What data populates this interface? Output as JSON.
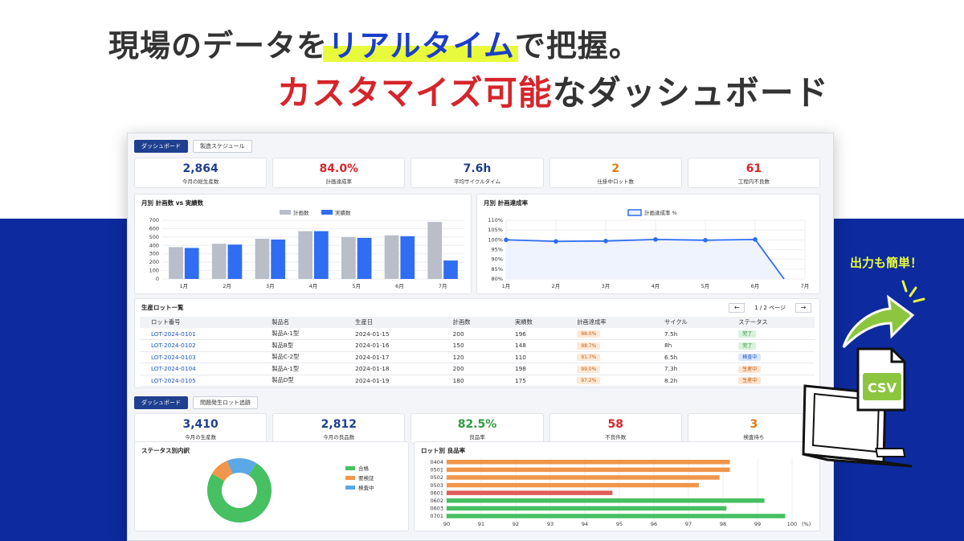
{
  "headline": {
    "line1_a": "現場のデータを",
    "line1_b": "リアルタイム",
    "line1_c": "で把握。",
    "line2_a": "カスタマイズ可能",
    "line2_b": "なダッシュボード"
  },
  "export_label": "出力も簡単！",
  "csv_label": "CSV",
  "top_tabs": [
    "ダッシュボード",
    "製造スケジュール"
  ],
  "top_kpis": [
    {
      "value": "2,864",
      "label": "今月の総生産数",
      "color": "#1f3f8f"
    },
    {
      "value": "84.0%",
      "label": "計画達成率",
      "color": "#d6252b"
    },
    {
      "value": "7.6h",
      "label": "平均サイクルタイム",
      "color": "#1f3f8f"
    },
    {
      "value": "2",
      "label": "仕掛中ロット数",
      "color": "#e07a10"
    },
    {
      "value": "61",
      "label": "工程内不良数",
      "color": "#d6252b"
    }
  ],
  "chart_data": [
    {
      "type": "bar",
      "title": "月別 計画数 vs 実績数",
      "categories": [
        "1月",
        "2月",
        "3月",
        "4月",
        "5月",
        "6月",
        "7月"
      ],
      "series": [
        {
          "name": "計画数",
          "values": [
            380,
            420,
            480,
            570,
            500,
            520,
            680
          ],
          "color": "#b9bec8"
        },
        {
          "name": "実績数",
          "values": [
            370,
            410,
            470,
            570,
            490,
            510,
            220
          ],
          "color": "#2f6df2"
        }
      ],
      "ylim": [
        0,
        700
      ],
      "yticks": [
        0,
        100,
        200,
        300,
        400,
        500,
        600,
        700
      ],
      "legend": "top-center"
    },
    {
      "type": "line",
      "title": "月別 計画達成率",
      "categories": [
        "1月",
        "2月",
        "3月",
        "4月",
        "5月",
        "6月",
        "7月"
      ],
      "series": [
        {
          "name": "計画達成率 %",
          "values": [
            100,
            99.2,
            99.4,
            100.2,
            99.8,
            100.2,
            78
          ],
          "color": "#2f6df2"
        }
      ],
      "ylim": [
        80,
        110
      ],
      "yticks": [
        "80%",
        "85%",
        "90%",
        "95%",
        "100%",
        "105%",
        "110%"
      ],
      "legend": "top-center"
    },
    {
      "type": "pie",
      "title": "ステータス別内訳",
      "labels": [
        "合格",
        "要検証",
        "検査中"
      ],
      "values": [
        75,
        10,
        15
      ],
      "colors": [
        "#46c060",
        "#f0954a",
        "#5aa8e6"
      ],
      "legend": "right"
    },
    {
      "type": "bar",
      "orientation": "horizontal",
      "title": "ロット別 良品率",
      "categories": [
        "0404",
        "0501",
        "0502",
        "0503",
        "0601",
        "0602",
        "0603",
        "0701"
      ],
      "values": [
        98.2,
        98.2,
        97.9,
        97.3,
        94.8,
        99.2,
        98.1,
        99.8
      ],
      "colors": [
        "#f0954a",
        "#f0954a",
        "#f0954a",
        "#f0954a",
        "#e05c5c",
        "#46c060",
        "#46c060",
        "#46c060"
      ],
      "xlim": [
        90,
        100
      ],
      "xticks": [
        "90",
        "91",
        "92",
        "93",
        "94",
        "95",
        "96",
        "97",
        "98",
        "99",
        "100"
      ],
      "xunit": "(%)"
    }
  ],
  "lots": {
    "title": "生産ロット一覧",
    "pager": {
      "prev": "←",
      "text": "1 / 2 ページ",
      "next": "→"
    },
    "columns": [
      "ロット番号",
      "製品名",
      "生産日",
      "計画数",
      "実績数",
      "計画達成率",
      "サイクル",
      "ステータス"
    ],
    "rows": [
      {
        "lot": "LOT-2024-0101",
        "product": "製品A-1型",
        "date": "2024-01-15",
        "plan": "200",
        "actual": "196",
        "rate": "98.0%",
        "cycle": "7.5h",
        "status": "完了",
        "status_kind": "done"
      },
      {
        "lot": "LOT-2024-0102",
        "product": "製品B型",
        "date": "2024-01-16",
        "plan": "150",
        "actual": "148",
        "rate": "98.7%",
        "cycle": "8h",
        "status": "完了",
        "status_kind": "done"
      },
      {
        "lot": "LOT-2024-0103",
        "product": "製品C-2型",
        "date": "2024-01-17",
        "plan": "120",
        "actual": "110",
        "rate": "91.7%",
        "cycle": "6.5h",
        "status": "検査中",
        "status_kind": "inspect"
      },
      {
        "lot": "LOT-2024-0104",
        "product": "製品A-1型",
        "date": "2024-01-18",
        "plan": "200",
        "actual": "198",
        "rate": "99.0%",
        "cycle": "7.3h",
        "status": "生産中",
        "status_kind": "prod"
      },
      {
        "lot": "LOT-2024-0105",
        "product": "製品D型",
        "date": "2024-01-19",
        "plan": "180",
        "actual": "175",
        "rate": "97.2%",
        "cycle": "8.2h",
        "status": "生産中",
        "status_kind": "prod"
      }
    ]
  },
  "bottom_tabs": [
    "ダッシュボード",
    "問題発生ロット追跡"
  ],
  "bottom_kpis": [
    {
      "value": "3,410",
      "label": "今月の生産数",
      "color": "#1f3f8f"
    },
    {
      "value": "2,812",
      "label": "今月の良品数",
      "color": "#1f3f8f"
    },
    {
      "value": "82.5%",
      "label": "良品率",
      "color": "#2e9e3e"
    },
    {
      "value": "58",
      "label": "不良件数",
      "color": "#d6252b"
    },
    {
      "value": "3",
      "label": "検査待ち",
      "color": "#e07a10"
    }
  ]
}
